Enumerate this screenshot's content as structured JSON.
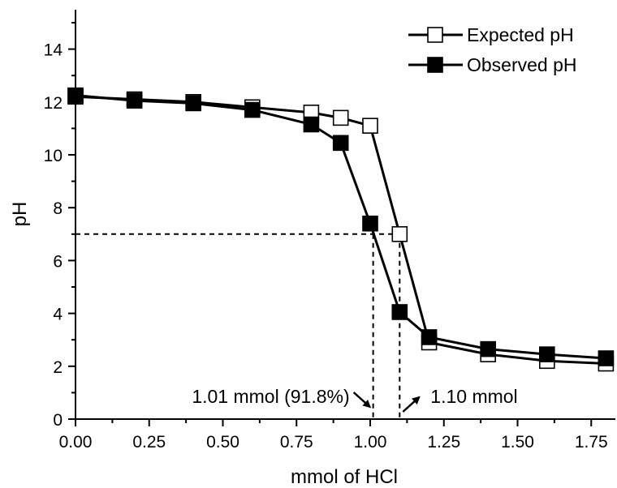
{
  "chart_data": {
    "type": "line",
    "xlabel": "mmol of HCl",
    "ylabel": "pH",
    "xlim": [
      0.0,
      1.85
    ],
    "ylim": [
      0,
      15.5
    ],
    "x_ticks": [
      "0.00",
      "0.25",
      "0.50",
      "0.75",
      "1.00",
      "1.25",
      "1.50",
      "1.75"
    ],
    "x_tick_values": [
      0.0,
      0.25,
      0.5,
      0.75,
      1.0,
      1.25,
      1.5,
      1.75
    ],
    "y_ticks": [
      "0",
      "2",
      "4",
      "6",
      "8",
      "10",
      "12",
      "14"
    ],
    "y_tick_values": [
      0,
      2,
      4,
      6,
      8,
      10,
      12,
      14
    ],
    "grid": false,
    "legend_position": "top-right",
    "series": [
      {
        "name": "Expected pH",
        "marker": "open-square",
        "color": "#000000",
        "x": [
          0.0,
          0.2,
          0.4,
          0.6,
          0.8,
          0.9,
          1.0,
          1.1,
          1.2,
          1.4,
          1.6,
          1.8
        ],
        "y": [
          12.2,
          12.1,
          12.0,
          11.8,
          11.6,
          11.4,
          11.1,
          7.0,
          2.9,
          2.45,
          2.2,
          2.1
        ]
      },
      {
        "name": "Observed pH",
        "marker": "filled-square",
        "color": "#000000",
        "x": [
          0.0,
          0.2,
          0.4,
          0.6,
          0.8,
          0.9,
          1.0,
          1.1,
          1.2,
          1.4,
          1.6,
          1.8
        ],
        "y": [
          12.25,
          12.05,
          11.95,
          11.7,
          11.15,
          10.45,
          7.4,
          4.05,
          3.1,
          2.65,
          2.45,
          2.3
        ]
      }
    ],
    "reference_line": {
      "y": 7,
      "style": "dashed"
    },
    "annotations": [
      {
        "text": "1.01 mmol (91.8%)",
        "x": 1.01
      },
      {
        "text": "1.10 mmol",
        "x": 1.1
      }
    ]
  }
}
